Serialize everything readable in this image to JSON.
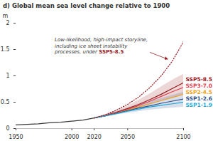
{
  "chart_data": {
    "type": "line",
    "title": "d) Global mean sea level change relative to 1900",
    "y_label": "m",
    "xlim": [
      1950,
      2100
    ],
    "ylim": [
      0,
      2
    ],
    "xticks": [
      1950,
      2000,
      2020,
      2050,
      2100
    ],
    "yticks": [
      0,
      0.5,
      1,
      1.5,
      2
    ],
    "grid": false,
    "series": [
      {
        "color": "#3a3a3a",
        "x": [
          1950,
          1960,
          1970,
          1980,
          1990,
          2000,
          2010,
          2020
        ],
        "values": [
          0.07,
          0.08,
          0.09,
          0.11,
          0.12,
          0.14,
          0.16,
          0.2
        ]
      },
      {
        "name": "SSP5-8.5",
        "color": "#951b1e",
        "x": [
          2020,
          2030,
          2040,
          2050,
          2060,
          2070,
          2080,
          2090,
          2100
        ],
        "values": [
          0.2,
          0.25,
          0.31,
          0.38,
          0.46,
          0.55,
          0.65,
          0.76,
          0.87
        ],
        "range_lower": [
          0.2,
          0.23,
          0.28,
          0.33,
          0.39,
          0.45,
          0.52,
          0.58,
          0.65
        ],
        "range_upper": [
          0.2,
          0.27,
          0.34,
          0.43,
          0.54,
          0.66,
          0.79,
          0.92,
          1.03
        ]
      },
      {
        "name": "SSP3-7.0",
        "color": "#e0414f",
        "x": [
          2020,
          2030,
          2040,
          2050,
          2060,
          2070,
          2080,
          2090,
          2100
        ],
        "values": [
          0.2,
          0.24,
          0.3,
          0.36,
          0.44,
          0.52,
          0.61,
          0.7,
          0.78
        ]
      },
      {
        "name": "SSP2-4.5",
        "color": "#f0a020",
        "x": [
          2020,
          2030,
          2040,
          2050,
          2060,
          2070,
          2080,
          2090,
          2100
        ],
        "values": [
          0.2,
          0.24,
          0.29,
          0.35,
          0.41,
          0.47,
          0.53,
          0.59,
          0.65
        ]
      },
      {
        "name": "SSP1-2.6",
        "color": "#2b4f8c",
        "x": [
          2020,
          2030,
          2040,
          2050,
          2060,
          2070,
          2080,
          2090,
          2100
        ],
        "values": [
          0.2,
          0.24,
          0.29,
          0.34,
          0.39,
          0.43,
          0.48,
          0.52,
          0.56
        ],
        "range_lower": [
          0.2,
          0.22,
          0.26,
          0.29,
          0.32,
          0.35,
          0.37,
          0.39,
          0.41
        ],
        "range_upper": [
          0.2,
          0.26,
          0.32,
          0.39,
          0.45,
          0.51,
          0.57,
          0.63,
          0.69
        ]
      },
      {
        "name": "SSP1-1.9",
        "color": "#1fa8d6",
        "x": [
          2020,
          2030,
          2040,
          2050,
          2060,
          2070,
          2080,
          2090,
          2100
        ],
        "values": [
          0.2,
          0.24,
          0.28,
          0.33,
          0.37,
          0.41,
          0.44,
          0.47,
          0.5
        ]
      },
      {
        "color": "#951b1e",
        "line_style": "dotted",
        "x": [
          2020,
          2030,
          2040,
          2050,
          2060,
          2070,
          2080,
          2090,
          2100
        ],
        "values": [
          0.2,
          0.26,
          0.35,
          0.46,
          0.6,
          0.78,
          1.0,
          1.28,
          1.65
        ],
        "annotation": {
          "lines": [
            "Low-likelihood, high-impact storyline,",
            "including ice sheet instability",
            "processes, under SSP5-8.5"
          ],
          "highlight": "SSP5-8.5"
        }
      }
    ]
  }
}
